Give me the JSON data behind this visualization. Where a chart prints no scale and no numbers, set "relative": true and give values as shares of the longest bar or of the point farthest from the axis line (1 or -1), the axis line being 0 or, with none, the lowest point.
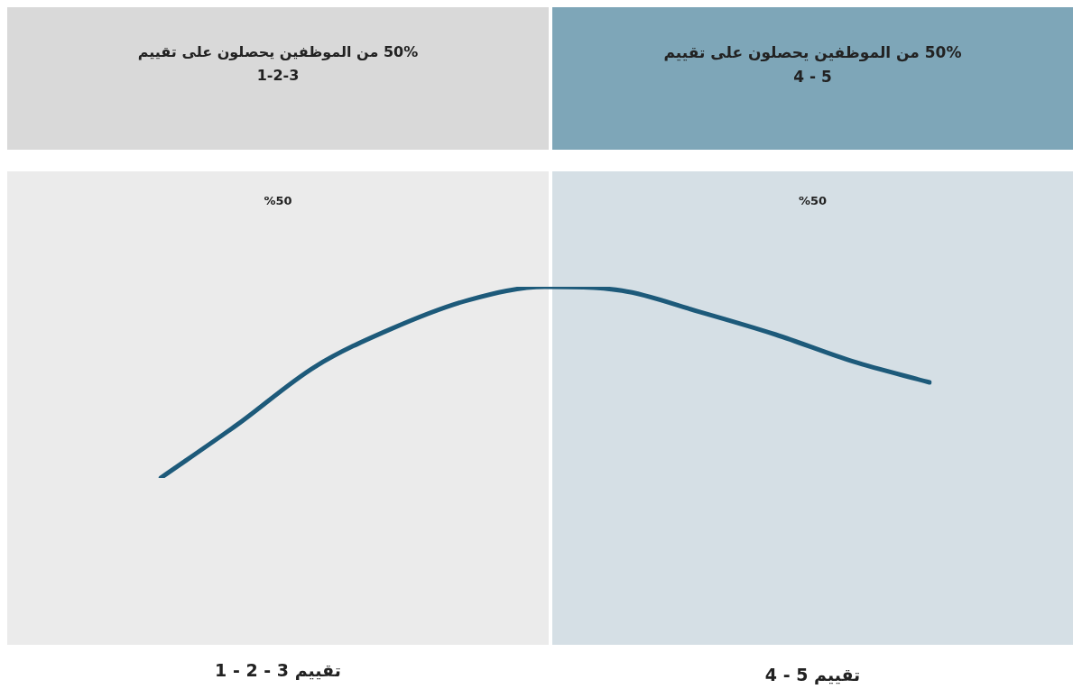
{
  "chart_data": {
    "type": "line",
    "relative": true,
    "categories": [
      null,
      null,
      null,
      null,
      null,
      null,
      null,
      null,
      null,
      null,
      null
    ],
    "series": [
      {
        "color": "#1d5a7a",
        "values": [
          0,
          0.28,
          0.58,
          0.78,
          0.93,
          1,
          0.98,
          0.87,
          0.75,
          0.61,
          0.5
        ]
      }
    ],
    "annotations": [
      "50% من الموظفين يحصلون على تقييم\n1-2-3",
      "50% من الموظفين يحصلون على تقييم\n5 - 4",
      "%50",
      "%50",
      "تقييم 3 - 2 - 1",
      "تقييم 5 - 4"
    ]
  }
}
